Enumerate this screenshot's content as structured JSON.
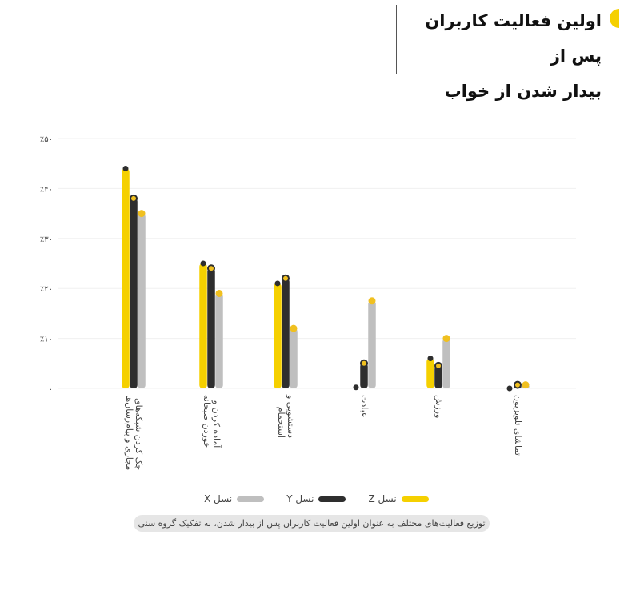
{
  "title_lines": [
    "اولین فعالیت کاربران پس از",
    "بیدار شدن از خواب"
  ],
  "caption": "توزیع فعالیت‌های مختلف به عنوان اولین فعالیت کاربران پس از بیدار شدن، به تفکیک گروه سنی",
  "colors": {
    "Z": "#f5d000",
    "Y": "#2e2e2e",
    "X": "#bfbfbf",
    "accent": "#f0c020"
  },
  "chart_data": {
    "type": "bar",
    "categories": [
      [
        "چک کردن شبکه‌های",
        "مجازی و پیام‌رسان‌ها"
      ],
      [
        "آماده کردن و",
        "خوردن صبحانه"
      ],
      [
        "دستشویی و",
        "استحمام"
      ],
      [
        "عبادت"
      ],
      [
        "ورزش"
      ],
      [
        "تماشای تلویزیون"
      ]
    ],
    "series": [
      {
        "name": "نسل Z",
        "values": [
          44,
          25,
          21,
          0.2,
          6,
          0
        ]
      },
      {
        "name": "نسل Y",
        "values": [
          38,
          24,
          22,
          5,
          4.5,
          0.7
        ]
      },
      {
        "name": "نسل X",
        "values": [
          35,
          19,
          12,
          17.5,
          10,
          0.7
        ]
      }
    ],
    "ylim": [
      0,
      50
    ],
    "yticks": [
      0,
      10,
      20,
      30,
      40,
      50
    ],
    "ytick_labels": [
      "۰",
      "٪۱۰",
      "٪۲۰",
      "٪۳۰",
      "٪۴۰",
      "٪۵۰"
    ],
    "grid": true,
    "legend": "bottom"
  }
}
